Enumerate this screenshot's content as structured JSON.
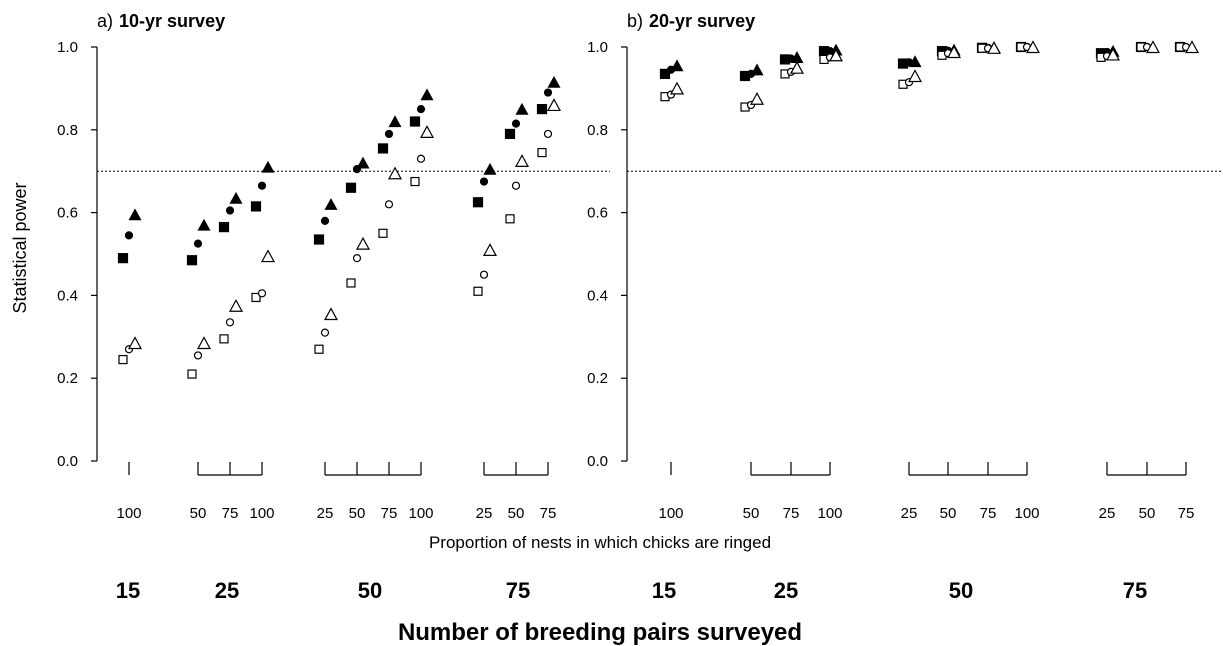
{
  "chart_data": [
    {
      "panel_letter": "a)",
      "title": "10-yr survey",
      "type": "scatter",
      "ylabel": "Statistical power",
      "ylim": [
        0,
        1
      ],
      "yticks": [
        "0.0",
        "0.2",
        "0.4",
        "0.6",
        "0.8",
        "1.0"
      ],
      "reference_line": 0.7,
      "groups": [
        {
          "label": "15",
          "proportions": [
            "100"
          ],
          "values": {
            "filled_square": [
              0.49
            ],
            "filled_circle": [
              0.545
            ],
            "filled_triangle": [
              0.595
            ],
            "open_square": [
              0.245
            ],
            "open_circle": [
              0.27
            ],
            "open_triangle": [
              0.285
            ]
          }
        },
        {
          "label": "25",
          "proportions": [
            "50",
            "75",
            "100"
          ],
          "values": {
            "filled_square": [
              0.485,
              0.565,
              0.615
            ],
            "filled_circle": [
              0.525,
              0.605,
              0.665
            ],
            "filled_triangle": [
              0.57,
              0.635,
              0.71
            ],
            "open_square": [
              0.21,
              0.295,
              0.395
            ],
            "open_circle": [
              0.255,
              0.335,
              0.405
            ],
            "open_triangle": [
              0.285,
              0.375,
              0.495
            ]
          }
        },
        {
          "label": "50",
          "proportions": [
            "25",
            "50",
            "75",
            "100"
          ],
          "values": {
            "filled_square": [
              0.535,
              0.66,
              0.755,
              0.82
            ],
            "filled_circle": [
              0.58,
              0.705,
              0.79,
              0.85
            ],
            "filled_triangle": [
              0.62,
              0.72,
              0.82,
              0.885
            ],
            "open_square": [
              0.27,
              0.43,
              0.55,
              0.675
            ],
            "open_circle": [
              0.31,
              0.49,
              0.62,
              0.73
            ],
            "open_triangle": [
              0.355,
              0.525,
              0.695,
              0.795
            ]
          }
        },
        {
          "label": "75",
          "proportions": [
            "25",
            "50",
            "75"
          ],
          "values": {
            "filled_square": [
              0.625,
              0.79,
              0.85
            ],
            "filled_circle": [
              0.675,
              0.815,
              0.89
            ],
            "filled_triangle": [
              0.705,
              0.85,
              0.915
            ],
            "open_square": [
              0.41,
              0.585,
              0.745
            ],
            "open_circle": [
              0.45,
              0.665,
              0.79
            ],
            "open_triangle": [
              0.51,
              0.725,
              0.86
            ]
          }
        }
      ]
    },
    {
      "panel_letter": "b)",
      "title": "20-yr survey",
      "type": "scatter",
      "ylabel": "",
      "ylim": [
        0,
        1
      ],
      "yticks": [
        "0.0",
        "0.2",
        "0.4",
        "0.6",
        "0.8",
        "1.0"
      ],
      "reference_line": 0.7,
      "groups": [
        {
          "label": "15",
          "proportions": [
            "100"
          ],
          "values": {
            "filled_square": [
              0.935
            ],
            "filled_circle": [
              0.945
            ],
            "filled_triangle": [
              0.955
            ],
            "open_square": [
              0.88
            ],
            "open_circle": [
              0.885
            ],
            "open_triangle": [
              0.9
            ]
          }
        },
        {
          "label": "25",
          "proportions": [
            "50",
            "75",
            "100"
          ],
          "values": {
            "filled_square": [
              0.93,
              0.97,
              0.99
            ],
            "filled_circle": [
              0.935,
              0.972,
              0.99
            ],
            "filled_triangle": [
              0.945,
              0.975,
              0.993
            ],
            "open_square": [
              0.855,
              0.935,
              0.97
            ],
            "open_circle": [
              0.86,
              0.94,
              0.975
            ],
            "open_triangle": [
              0.875,
              0.95,
              0.98
            ]
          }
        },
        {
          "label": "50",
          "proportions": [
            "25",
            "50",
            "75",
            "100"
          ],
          "values": {
            "filled_square": [
              0.96,
              0.99,
              0.998,
              1.0
            ],
            "filled_circle": [
              0.963,
              0.991,
              0.998,
              1.0
            ],
            "filled_triangle": [
              0.965,
              0.993,
              0.999,
              1.0
            ],
            "open_square": [
              0.91,
              0.98,
              0.997,
              1.0
            ],
            "open_circle": [
              0.915,
              0.985,
              0.997,
              1.0
            ],
            "open_triangle": [
              0.93,
              0.988,
              0.998,
              1.0
            ]
          }
        },
        {
          "label": "75",
          "proportions": [
            "25",
            "50",
            "75"
          ],
          "values": {
            "filled_square": [
              0.985,
              1.0,
              1.0
            ],
            "filled_circle": [
              0.988,
              1.0,
              1.0
            ],
            "filled_triangle": [
              0.99,
              1.0,
              1.0
            ],
            "open_square": [
              0.975,
              1.0,
              1.0
            ],
            "open_circle": [
              0.978,
              1.0,
              1.0
            ],
            "open_triangle": [
              0.982,
              1.0,
              1.0
            ]
          }
        }
      ]
    }
  ],
  "shared_xlabel": "Proportion of nests in which chicks are ringed",
  "main_xlabel": "Number of breeding pairs surveyed",
  "marker_order": [
    "filled_square",
    "filled_circle",
    "filled_triangle",
    "open_square",
    "open_circle",
    "open_triangle"
  ]
}
